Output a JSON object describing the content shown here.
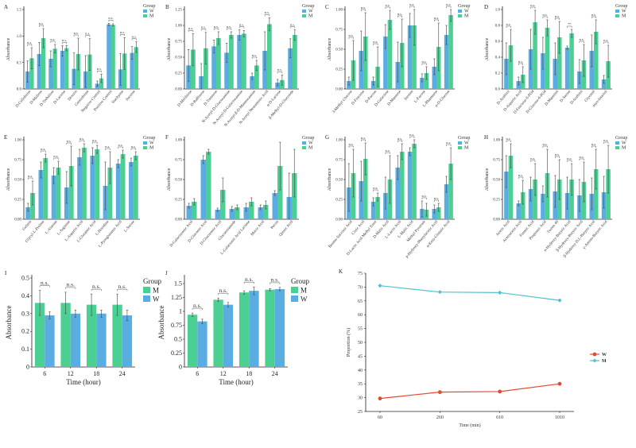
{
  "colors": {
    "W": "#5aade0",
    "M": "#4ccf92",
    "line_W": "#e34a2f",
    "line_M": "#53bfd0"
  },
  "chart_data": [
    {
      "panel": "A",
      "type": "bar",
      "ylabel": "Absorbance",
      "legend_title": "Group",
      "legend": [
        "W",
        "M"
      ],
      "legend_position": "top-right",
      "ylim": [
        0,
        1.5
      ],
      "yticks": [
        "0.0",
        "0.5",
        "1.0",
        "1.5"
      ],
      "categories": [
        "D-Cellobiose",
        "D-Maltose",
        "D-Trehalose",
        "D-Lactose",
        "Dextrin",
        "Gentiobiose",
        "Negative Control",
        "Positive Control",
        "Stachyose",
        "Sucrose"
      ],
      "series": [
        {
          "name": "W",
          "values": [
            0.33,
            0.66,
            0.57,
            0.72,
            0.38,
            0.33,
            0.1,
            1.22,
            0.37,
            0.68
          ],
          "err": [
            0.2,
            0.22,
            0.15,
            0.1,
            0.3,
            0.3,
            0.05,
            0.02,
            0.3,
            0.12
          ]
        },
        {
          "name": "M",
          "values": [
            0.58,
            0.96,
            0.76,
            0.77,
            0.66,
            0.65,
            0.2,
            1.21,
            0.67,
            0.79
          ],
          "err": [
            0.2,
            0.18,
            0.08,
            0.05,
            0.3,
            0.3,
            0.08,
            0.02,
            0.3,
            0.1
          ]
        }
      ],
      "annotations": [
        "n.s.",
        "n.s.",
        "n.s.",
        "n.s.",
        "n.s.",
        "n.s.",
        "n.s.",
        "n.s.",
        "n.s.",
        "n.s."
      ]
    },
    {
      "panel": "B",
      "type": "bar",
      "ylabel": "Absorbance",
      "legend_title": "Group",
      "legend": [
        "W",
        "M"
      ],
      "legend_position": "top-right",
      "ylim": [
        0,
        1.25
      ],
      "yticks": [
        "0.00",
        "0.25",
        "0.50",
        "0.75",
        "1.00",
        "1.25"
      ],
      "categories": [
        "D-Melibiose",
        "D-Raffinose",
        "D-Turanose",
        "N-Acetyl-D-Glucosamine",
        "N-Acetyl-D-Galactosamine",
        "N-Acetyl-β-D-Mannosamine",
        "N-Acetyl Neuraminic Acid",
        "α-D-Lactose",
        "β-Methyl-D-Glucoside"
      ],
      "series": [
        {
          "name": "W",
          "values": [
            0.37,
            0.2,
            0.67,
            0.57,
            0.85,
            0.2,
            0.6,
            0.1,
            0.64
          ],
          "err": [
            0.25,
            0.2,
            0.1,
            0.15,
            0.08,
            0.05,
            0.3,
            0.05,
            0.15
          ]
        },
        {
          "name": "M",
          "values": [
            0.62,
            0.64,
            0.8,
            0.85,
            0.87,
            0.37,
            1.02,
            0.14,
            0.85
          ],
          "err": [
            0.25,
            0.25,
            0.1,
            0.05,
            0.05,
            0.08,
            0.1,
            0.08,
            0.08
          ]
        }
      ],
      "annotations": [
        "n.s.",
        "n.s.",
        "n.s.",
        "n.s.",
        "n.s.",
        "n.s.",
        "n.s.",
        "n.s.",
        "n.s."
      ]
    },
    {
      "panel": "C",
      "type": "bar",
      "ylabel": "Absorbance",
      "legend_title": "Group",
      "legend": [
        "W",
        "M"
      ],
      "legend_position": "top-right",
      "ylim": [
        0,
        1.0
      ],
      "yticks": [
        "0.00",
        "0.25",
        "0.50",
        "0.75",
        "1.00"
      ],
      "categories": [
        "3-Methyl Glucose",
        "D-Fructose",
        "D-Fucose",
        "D-Galactose",
        "D-Mannose",
        "Inosine",
        "L-Fucose",
        "L-Rhamnose",
        "α-D-Glucose"
      ],
      "series": [
        {
          "name": "W",
          "values": [
            0.1,
            0.48,
            0.1,
            0.66,
            0.34,
            0.8,
            0.14,
            0.28,
            0.68
          ],
          "err": [
            0.05,
            0.25,
            0.05,
            0.15,
            0.25,
            0.15,
            0.05,
            0.1,
            0.12
          ]
        },
        {
          "name": "M",
          "values": [
            0.36,
            0.66,
            0.28,
            0.87,
            0.58,
            0.8,
            0.2,
            0.53,
            0.93
          ],
          "err": [
            0.25,
            0.3,
            0.25,
            0.12,
            0.3,
            0.25,
            0.08,
            0.3,
            0.08
          ]
        }
      ],
      "annotations": [
        "n.s.",
        "n.s.",
        "n.s.",
        "n.s.",
        "n.s.",
        "n.s.",
        "n.s.",
        "n.s.",
        "n.s."
      ]
    },
    {
      "panel": "D",
      "type": "bar",
      "ylabel": "Absorbance",
      "legend_title": "Group",
      "legend": [
        "W",
        "M"
      ],
      "legend_position": "top-right",
      "ylim": [
        0,
        1.0
      ],
      "yticks": [
        "0.0",
        "0.2",
        "0.4",
        "0.6",
        "0.8",
        "1.0"
      ],
      "categories": [
        "D-Arabitol",
        "D-Aspartic Acid",
        "D-Fructose-6-PO4",
        "D-Glucose-6-PO4",
        "D-Mannitol",
        "D-Serine",
        "D-Sorbitol",
        "Glycerol",
        "myo-Inositol"
      ],
      "series": [
        {
          "name": "W",
          "values": [
            0.38,
            0.1,
            0.5,
            0.45,
            0.38,
            0.52,
            0.22,
            0.48,
            0.12
          ],
          "err": [
            0.2,
            0.05,
            0.25,
            0.2,
            0.2,
            0.02,
            0.15,
            0.2,
            0.05
          ]
        },
        {
          "name": "M",
          "values": [
            0.55,
            0.18,
            0.84,
            0.77,
            0.65,
            0.7,
            0.36,
            0.72,
            0.35
          ],
          "err": [
            0.2,
            0.1,
            0.15,
            0.1,
            0.2,
            0.05,
            0.2,
            0.15,
            0.2
          ]
        }
      ],
      "annotations": [
        "n.s.",
        "n.s.",
        "n.s.",
        "n.s.",
        "n.s.",
        "**",
        "n.s.",
        "n.s.",
        "n.s."
      ]
    },
    {
      "panel": "E",
      "type": "bar",
      "ylabel": "Absorbance",
      "legend_title": "Group",
      "legend": [
        "W",
        "M"
      ],
      "legend_position": "top-right",
      "ylim": [
        0,
        1.0
      ],
      "yticks": [
        "0.00",
        "0.25",
        "0.50",
        "0.75",
        "1.00"
      ],
      "categories": [
        "Gelatin",
        "Glycyl-L-Proline",
        "L-Alanine",
        "L-Arginine",
        "L-Aspartic Acid",
        "L-Glutamic Acid",
        "L-Histidine",
        "L-Pyroglutamic Acid",
        "L-Serine"
      ],
      "series": [
        {
          "name": "W",
          "values": [
            0.15,
            0.62,
            0.55,
            0.4,
            0.78,
            0.8,
            0.42,
            0.7,
            0.72
          ],
          "err": [
            0.05,
            0.1,
            0.1,
            0.2,
            0.1,
            0.1,
            0.3,
            0.05,
            0.05
          ]
        },
        {
          "name": "M",
          "values": [
            0.33,
            0.77,
            0.65,
            0.67,
            0.9,
            0.88,
            0.65,
            0.82,
            0.8
          ],
          "err": [
            0.15,
            0.05,
            0.08,
            0.25,
            0.05,
            0.05,
            0.2,
            0.05,
            0.05
          ]
        }
      ],
      "annotations": [
        "n.s.",
        "n.s.",
        "n.s.",
        "n.s.",
        "n.s.",
        "n.s.",
        "n.s.",
        "n.s.",
        "n.s."
      ]
    },
    {
      "panel": "F",
      "type": "bar",
      "ylabel": "Absorbance",
      "legend_title": "Group",
      "legend": [
        "W",
        "M"
      ],
      "legend_position": "top-right",
      "ylim": [
        0,
        1.0
      ],
      "yticks": [
        "0.00",
        "0.25",
        "0.50",
        "0.75",
        "1.00"
      ],
      "categories": [
        "D-Galacturonic Acid",
        "D-Gluconic Acid",
        "D-Glucuronic Acid",
        "Glucuronamide",
        "L-Galactonic Acid Lactone",
        "Mucic Acid",
        "Pectin",
        "Quinic Acid"
      ],
      "series": [
        {
          "name": "W",
          "values": [
            0.17,
            0.75,
            0.12,
            0.13,
            0.15,
            0.15,
            0.33,
            0.28
          ],
          "err": [
            0.03,
            0.05,
            0.02,
            0.03,
            0.05,
            0.03,
            0.03,
            0.3
          ]
        },
        {
          "name": "M",
          "values": [
            0.22,
            0.85,
            0.37,
            0.15,
            0.22,
            0.18,
            0.67,
            0.58
          ],
          "err": [
            0.04,
            0.03,
            0.15,
            0.03,
            0.05,
            0.05,
            0.3,
            0.3
          ]
        }
      ],
      "annotations": []
    },
    {
      "panel": "G",
      "type": "bar",
      "ylabel": "Absorbance",
      "legend_title": "Group",
      "legend": [
        "W",
        "M"
      ],
      "legend_position": "top-right",
      "ylim": [
        0,
        1.0
      ],
      "yticks": [
        "0.00",
        "0.25",
        "0.50",
        "0.75",
        "1.00"
      ],
      "categories": [
        "Bromo-Succinic Acid",
        "Citric Acid",
        "D-Lactic Acid Methyl Ester",
        "D-Malic Acid",
        "L-Lactic Acid",
        "L-Malic Acid",
        "Methyl Pyruvate",
        "p-Hydroxy-Phenylacetic Acid",
        "α-Keto-Glutaric Acid"
      ],
      "series": [
        {
          "name": "W",
          "values": [
            0.4,
            0.48,
            0.22,
            0.33,
            0.65,
            0.85,
            0.13,
            0.13,
            0.44
          ],
          "err": [
            0.3,
            0.25,
            0.05,
            0.2,
            0.15,
            0.05,
            0.1,
            0.05,
            0.1
          ]
        },
        {
          "name": "M",
          "values": [
            0.58,
            0.76,
            0.28,
            0.5,
            0.85,
            0.95,
            0.12,
            0.15,
            0.7
          ],
          "err": [
            0.3,
            0.2,
            0.05,
            0.3,
            0.1,
            0.05,
            0.08,
            0.05,
            0.2
          ]
        }
      ],
      "annotations": [
        "n.s.",
        "n.s.",
        "n.s.",
        "n.s.",
        "n.s.",
        "n.s.",
        "n.s.",
        "n.s.",
        "n.s."
      ]
    },
    {
      "panel": "H",
      "type": "bar",
      "ylabel": "Absorbance",
      "legend_title": "Group",
      "legend": [
        "W",
        "M"
      ],
      "legend_position": "top-right",
      "ylim": [
        0,
        1.0
      ],
      "yticks": [
        "0.00",
        "0.25",
        "0.50",
        "0.75",
        "1.00"
      ],
      "categories": [
        "Acetic Acid",
        "Acetoacetic Acid",
        "Formic Acid",
        "Propionic Acid",
        "Tween 40",
        "α-Hydroxy-Butyric Acid",
        "β-Hydroxy-Butyric Acid",
        "β-Hydroxy-D,L-Butyric Acid",
        "γ-Amino-Butyric Acid"
      ],
      "series": [
        {
          "name": "W",
          "values": [
            0.6,
            0.2,
            0.38,
            0.32,
            0.35,
            0.33,
            0.3,
            0.32,
            0.34
          ],
          "err": [
            0.2,
            0.03,
            0.15,
            0.1,
            0.2,
            0.2,
            0.2,
            0.2,
            0.2
          ]
        },
        {
          "name": "M",
          "values": [
            0.8,
            0.34,
            0.5,
            0.58,
            0.5,
            0.5,
            0.47,
            0.63,
            0.63
          ],
          "err": [
            0.15,
            0.15,
            0.2,
            0.3,
            0.25,
            0.2,
            0.25,
            0.25,
            0.3
          ]
        }
      ],
      "annotations": [
        "n.s.",
        "n.s.",
        "n.s.",
        "n.s.",
        "n.s.",
        "n.s.",
        "n.s.",
        "n.s.",
        "n.s."
      ]
    },
    {
      "panel": "I",
      "type": "bar",
      "ylabel": "Absorbance",
      "xlabel": "Time (hour)",
      "legend_title": "Group",
      "legend": [
        "M",
        "W"
      ],
      "legend_position": "top-right",
      "ylim": [
        0,
        0.5
      ],
      "yticks": [
        "0",
        "0.1",
        "0.2",
        "0.3",
        "0.4",
        "0.5"
      ],
      "categories": [
        "6",
        "12",
        "18",
        "24"
      ],
      "series": [
        {
          "name": "M",
          "values": [
            0.36,
            0.36,
            0.35,
            0.35
          ],
          "err": [
            0.07,
            0.06,
            0.06,
            0.06
          ]
        },
        {
          "name": "W",
          "values": [
            0.29,
            0.3,
            0.3,
            0.29
          ],
          "err": [
            0.02,
            0.02,
            0.02,
            0.03
          ]
        }
      ],
      "annotations": [
        "n.s.",
        "n.s.",
        "n.s.",
        "n.s."
      ]
    },
    {
      "panel": "J",
      "type": "bar",
      "ylabel": "Absorbance",
      "xlabel": "Time (hour)",
      "legend_title": "Group",
      "legend": [
        "M",
        "W"
      ],
      "legend_position": "top-right",
      "ylim": [
        0,
        1.6
      ],
      "yticks": [
        "0",
        "0.25",
        "0.5",
        "0.75",
        "1",
        "1.25",
        "1.5"
      ],
      "categories": [
        "6",
        "12",
        "18",
        "24"
      ],
      "series": [
        {
          "name": "M",
          "values": [
            0.94,
            1.21,
            1.34,
            1.39
          ],
          "err": [
            0.03,
            0.03,
            0.03,
            0.02
          ]
        },
        {
          "name": "W",
          "values": [
            0.82,
            1.12,
            1.37,
            1.4
          ],
          "err": [
            0.04,
            0.04,
            0.07,
            0.03
          ]
        }
      ],
      "annotations": [
        "n.s.",
        "n.s.",
        "n.s.",
        "n.s."
      ]
    },
    {
      "panel": "K",
      "type": "line",
      "ylabel": "Proportion (%)",
      "xlabel": "Time (min)",
      "legend": [
        "W",
        "M"
      ],
      "legend_position": "right",
      "ylim": [
        25,
        75
      ],
      "yticks": [
        "25",
        "30",
        "35",
        "40",
        "45",
        "50",
        "55",
        "60",
        "65",
        "70",
        "75"
      ],
      "categories": [
        "60",
        "260",
        "610",
        "1010"
      ],
      "series": [
        {
          "name": "W",
          "values": [
            29.7,
            32.0,
            32.2,
            35.0
          ]
        },
        {
          "name": "M",
          "values": [
            70.5,
            68.2,
            68.0,
            65.2
          ]
        }
      ]
    }
  ]
}
